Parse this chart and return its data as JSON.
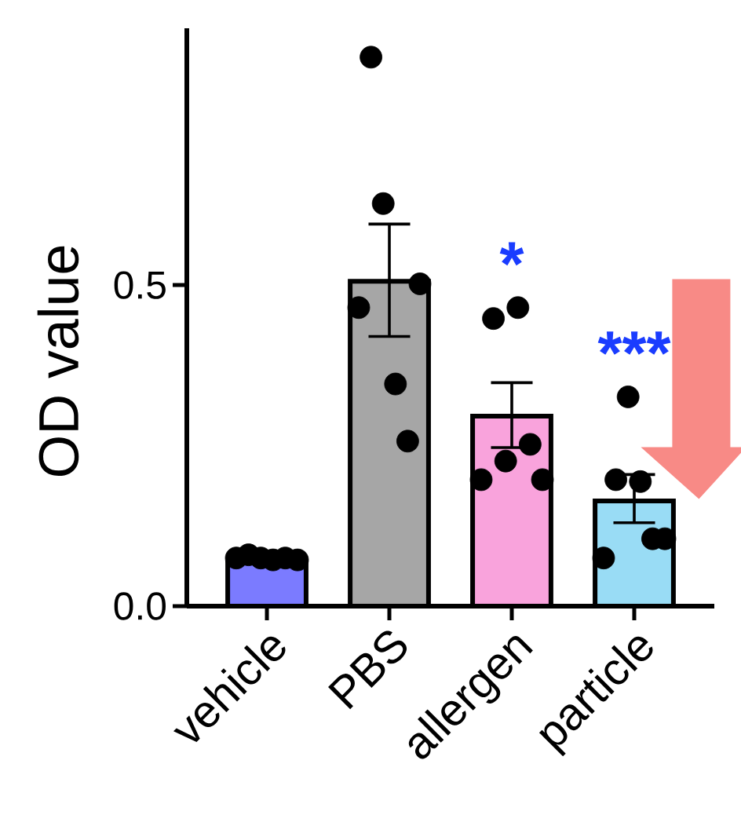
{
  "chart_data": {
    "type": "bar",
    "ylabel": "OD value",
    "categories": [
      "vehicle",
      "PBS",
      "allergen",
      "particle"
    ],
    "ylim": [
      0,
      0.9
    ],
    "yticks": [
      {
        "value": 0,
        "label": "0.0"
      },
      0.5
    ],
    "series": [
      {
        "colors": [
          "#7b7bff",
          "#a6a6a6",
          "#f9a3dc",
          "#99dcf5"
        ],
        "values": [
          0.068,
          0.506,
          0.296,
          0.164
        ],
        "errors": [
          null,
          [
            0.42,
            0.595
          ],
          [
            0.247,
            0.348
          ],
          [
            0.13,
            0.205
          ]
        ]
      },
      {
        "type": "scatter",
        "color": "#000000",
        "x": [
          "vehicle",
          "vehicle",
          "vehicle",
          "vehicle",
          "vehicle",
          "vehicle",
          "PBS",
          "PBS",
          "PBS",
          "PBS",
          "PBS",
          "PBS",
          "allergen",
          "allergen",
          "allergen",
          "allergen",
          "allergen",
          "allergen",
          "particle",
          "particle",
          "particle",
          "particle",
          "particle",
          "particle"
        ],
        "values": [
          0.075,
          0.08,
          0.075,
          0.072,
          0.075,
          0.072,
          0.465,
          0.855,
          0.627,
          0.346,
          0.257,
          0.502,
          0.197,
          0.448,
          0.226,
          0.465,
          0.252,
          0.197,
          0.075,
          0.197,
          0.326,
          0.194,
          0.105,
          0.105
        ]
      }
    ],
    "marker": "circle",
    "annotations": [
      "*",
      "***"
    ]
  }
}
